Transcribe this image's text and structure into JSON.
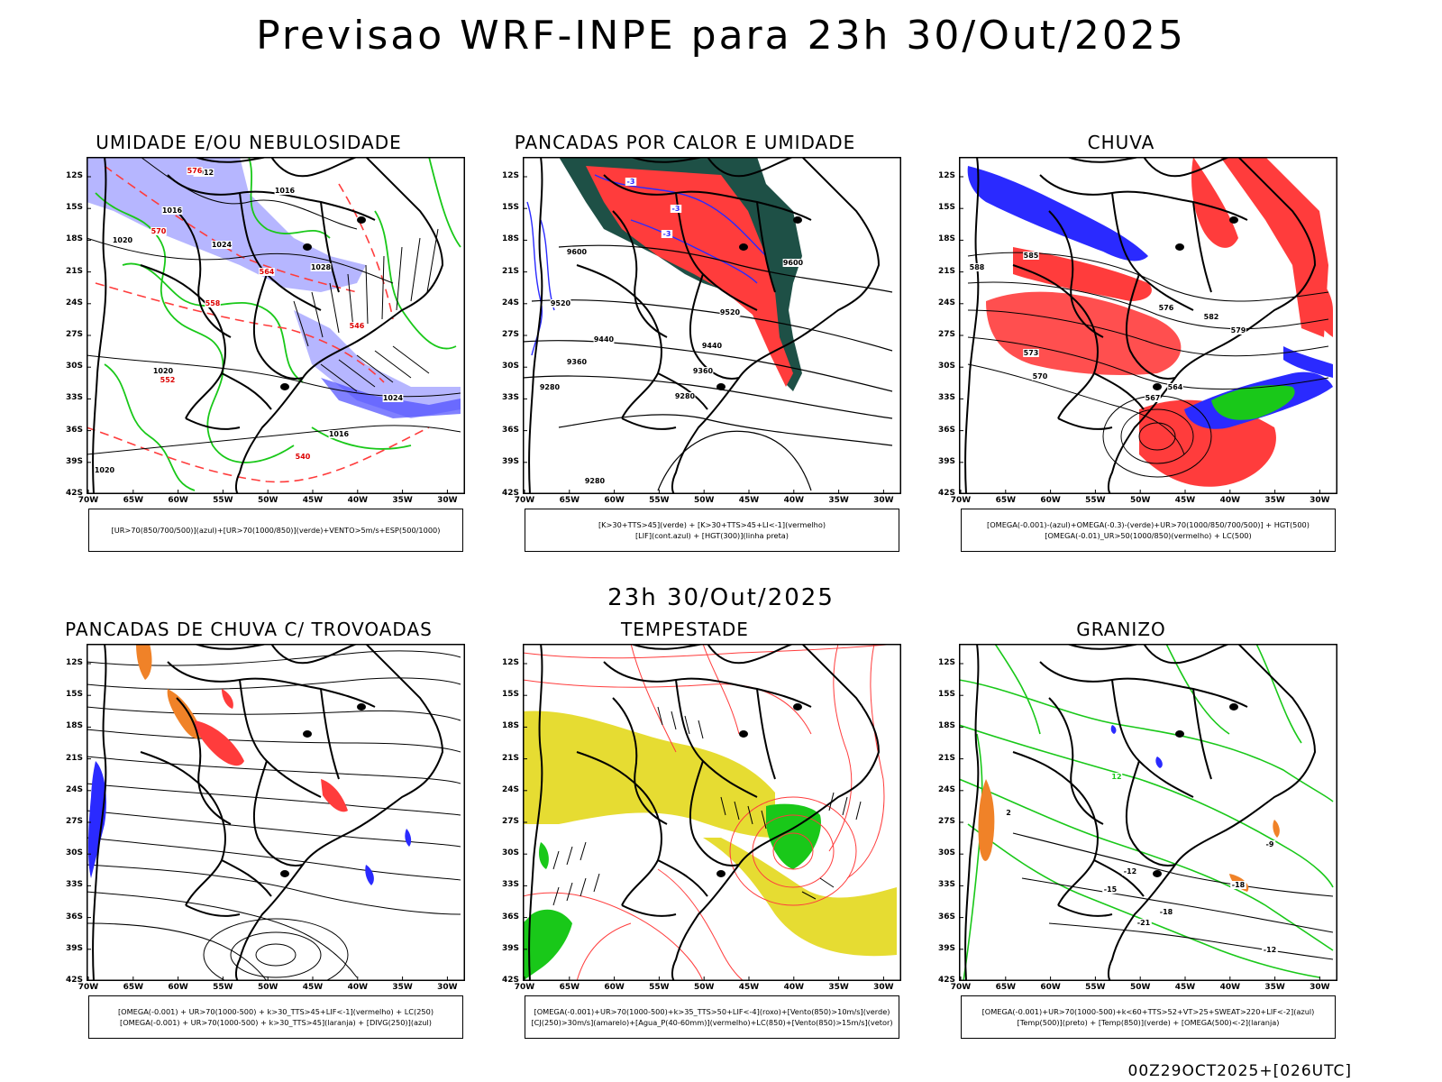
{
  "main_title": "Previsao WRF-INPE  para 23h 30/Out/2025",
  "mid_time": "23h 30/Out/2025",
  "footer": "00Z29OCT2025+[026UTC]",
  "axes": {
    "lat_labels": [
      "12S",
      "15S",
      "18S",
      "21S",
      "24S",
      "27S",
      "30S",
      "33S",
      "36S",
      "39S",
      "42S"
    ],
    "lon_labels": [
      "70W",
      "65W",
      "60W",
      "55W",
      "50W",
      "45W",
      "40W",
      "35W",
      "30W"
    ]
  },
  "panels": [
    {
      "title": "UMIDADE E/OU NEBULOSIDADE",
      "legend": [
        "[UR>70(850/700/500)](azul)+[UR>70(1000/850)](verde)+VENTO>5m/s+ESP(500/1000)"
      ],
      "contour_labels": [
        "1012",
        "1016",
        "1016",
        "1020",
        "1024",
        "1028",
        "1020",
        "1024",
        "1016",
        "1020",
        "576",
        "570",
        "564",
        "558",
        "552",
        "546",
        "540"
      ]
    },
    {
      "title": "PANCADAS POR CALOR E UMIDADE",
      "legend": [
        "[K>30+TTS>45](verde) + [K>30+TTS>45+LI<-1](vermelho)",
        "[LIF](cont.azul) + [HGT(300)](linha preta)"
      ],
      "contour_labels": [
        "9600",
        "9600",
        "9520",
        "9520",
        "9440",
        "9440",
        "9360",
        "9360",
        "9280",
        "9280",
        "9280",
        "-3",
        "-3",
        "-3"
      ]
    },
    {
      "title": "CHUVA",
      "legend": [
        "[OMEGA(-0.001)-(azul)+OMEGA(-0.3)-(verde)+UR>70(1000/850/700/500)] + HGT(500)",
        "[OMEGA(-0.01)_UR>50(1000/850)(vermelho) + LC(500)"
      ],
      "contour_labels": [
        "588",
        "585",
        "582",
        "579",
        "576",
        "573",
        "570",
        "567",
        "564"
      ]
    },
    {
      "title": "PANCADAS DE CHUVA C/ TROVOADAS",
      "legend": [
        "[OMEGA(-0.001) + UR>70(1000-500) + k>30_TTS>45+LIF<-1](vermelho) + LC(250)",
        "[OMEGA(-0.001) + UR>70(1000-500) + k>30_TTS>45](laranja) + [DIVG(250)](azul)"
      ],
      "contour_labels": []
    },
    {
      "title": "TEMPESTADE",
      "legend": [
        "[OMEGA(-0.001)+UR>70(1000-500)+k>35_TTS>50+LIF<-4](roxo)+[Vento(850)>10m/s](verde)",
        "[CJ(250)>30m/s](amarelo)+[Agua_P(40-60mm)](vermelho)+LC(850)+[Vento(850)>15m/s](vetor)"
      ],
      "contour_labels": []
    },
    {
      "title": "GRANIZO",
      "legend": [
        "[OMEGA(-0.001)+UR>70(1000-500)+k<60+TTS>52+VT>25+SWEAT>220+LIF<-2](azul)",
        "[Temp(500)](preto) + [Temp(850)](verde) + [OMEGA(500)<-2](laranja)"
      ],
      "contour_labels": [
        "-9",
        "-12",
        "-15",
        "-18",
        "-21",
        "-12",
        "-18",
        "12",
        "2"
      ]
    }
  ],
  "colors": {
    "moisture_blue": "#a9a9ff",
    "green": "#19c819",
    "red": "#ff3c3c",
    "dark_teal": "#1e5046",
    "blue": "#2a2aff",
    "yellow": "#e6dc32",
    "orange": "#f08228"
  }
}
